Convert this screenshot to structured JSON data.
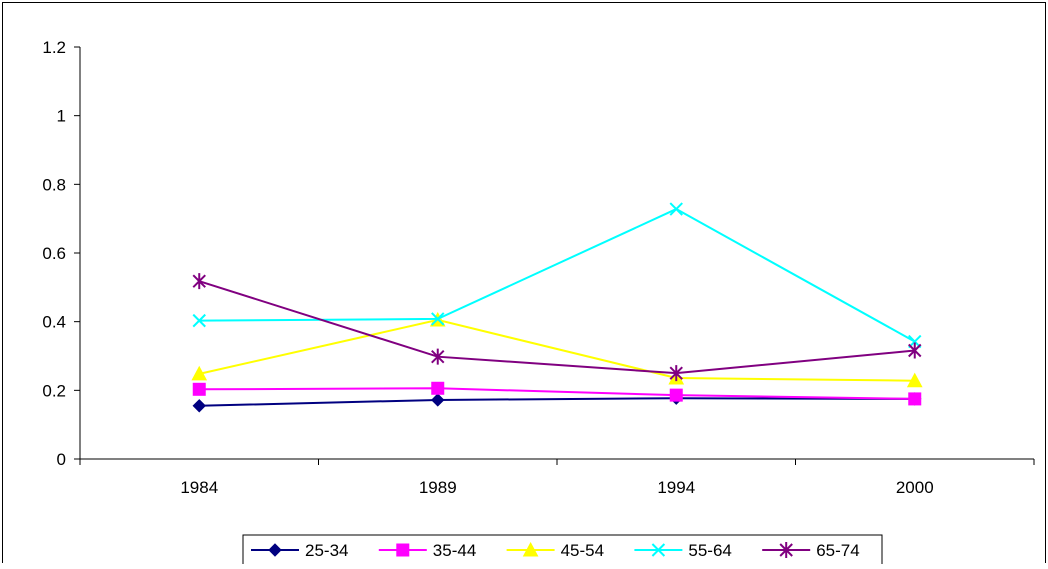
{
  "chart_data": {
    "type": "line",
    "x": [
      "1984",
      "1989",
      "1994",
      "2000"
    ],
    "ylim": [
      0,
      1.2
    ],
    "yticks": [
      "0",
      "0.2",
      "0.4",
      "0.6",
      "0.8",
      "1",
      "1.2"
    ],
    "grid": false,
    "legend_position": "bottom",
    "series": [
      {
        "name": "25-34",
        "values": [
          0.155,
          0.172,
          0.177,
          0.175
        ],
        "color": "#000080",
        "marker": "diamond"
      },
      {
        "name": "35-44",
        "values": [
          0.203,
          0.206,
          0.186,
          0.175
        ],
        "color": "#FF00FF",
        "marker": "square"
      },
      {
        "name": "45-54",
        "values": [
          0.248,
          0.405,
          0.236,
          0.228
        ],
        "color": "#FFFF00",
        "marker": "triangle"
      },
      {
        "name": "55-64",
        "values": [
          0.403,
          0.408,
          0.728,
          0.342
        ],
        "color": "#00FFFF",
        "marker": "x"
      },
      {
        "name": "65-74",
        "values": [
          0.518,
          0.298,
          0.25,
          0.316
        ],
        "color": "#800080",
        "marker": "star"
      }
    ]
  }
}
